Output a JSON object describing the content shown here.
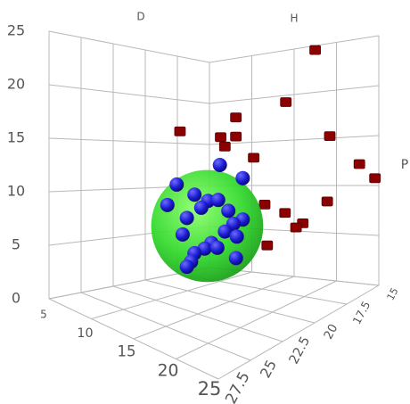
{
  "chart_data": {
    "type": "scatter3d",
    "xlabel": "D",
    "ylabel": "H",
    "zlabel": "P",
    "xlim": [
      5,
      25
    ],
    "xticks": [
      5,
      10,
      15,
      20,
      25
    ],
    "ylim": [
      15,
      27.5
    ],
    "yticks": [
      15,
      17.5,
      20,
      22.5,
      25,
      27.5
    ],
    "zlim": [
      0,
      25
    ],
    "zticks": [
      0,
      5,
      10,
      15,
      20,
      25
    ],
    "grid": true,
    "series": [
      {
        "marker": "cube",
        "color": "#8b0000",
        "x": [
          19,
          9.1,
          15.7,
          21.6,
          13.9,
          15.7,
          14.4,
          23,
          17.8,
          24.6,
          25,
          19.1,
          22.7,
          21.5,
          23.6,
          22.8,
          19.4
        ],
        "y": [
          16,
          20,
          20,
          20,
          20,
          20,
          20,
          17.5,
          20,
          16.25,
          15.3,
          20,
          17.5,
          20,
          20,
          20,
          20
        ],
        "z": [
          24.5,
          16.5,
          18.4,
          20.2,
          16.3,
          16.5,
          15.4,
          16.1,
          14.6,
          12.8,
          10.9,
          10.2,
          9.7,
          9.7,
          9,
          8.5,
          6.3
        ]
      },
      {
        "marker": "sphere",
        "color": "#22dd22",
        "x": [
          16.1
        ],
        "y": [
          22.5
        ],
        "z": [
          8.6
        ],
        "size": [
          5.3
        ]
      },
      {
        "marker": "sphere",
        "color": "#1a1ad0",
        "x": [
          17.6,
          12.5,
          20.3,
          14.6,
          16.2,
          17.4,
          11.4,
          18.6,
          13.7,
          20.3,
          19.2,
          13.2,
          18.2,
          19.6,
          16.6,
          15.8,
          17.3,
          14.6,
          19.5,
          14.2,
          13.7,
          15.4
        ],
        "y": [
          22.5,
          22.5,
          22.5,
          22.5,
          22.5,
          22.5,
          22.5,
          22.5,
          22.5,
          22.5,
          22.5,
          22.5,
          22.5,
          22.5,
          22.5,
          22.5,
          22.5,
          22.5,
          22.5,
          22.5,
          22.5,
          22.5
        ],
        "z": [
          14.6,
          11.9,
          13.8,
          11.3,
          11,
          11.3,
          9.7,
          10.5,
          8.9,
          10,
          9.4,
          7.2,
          8.5,
          8.3,
          7.1,
          6.4,
          6.8,
          5.7,
          6.3,
          4.8,
          4.2,
          10.2
        ]
      }
    ]
  }
}
